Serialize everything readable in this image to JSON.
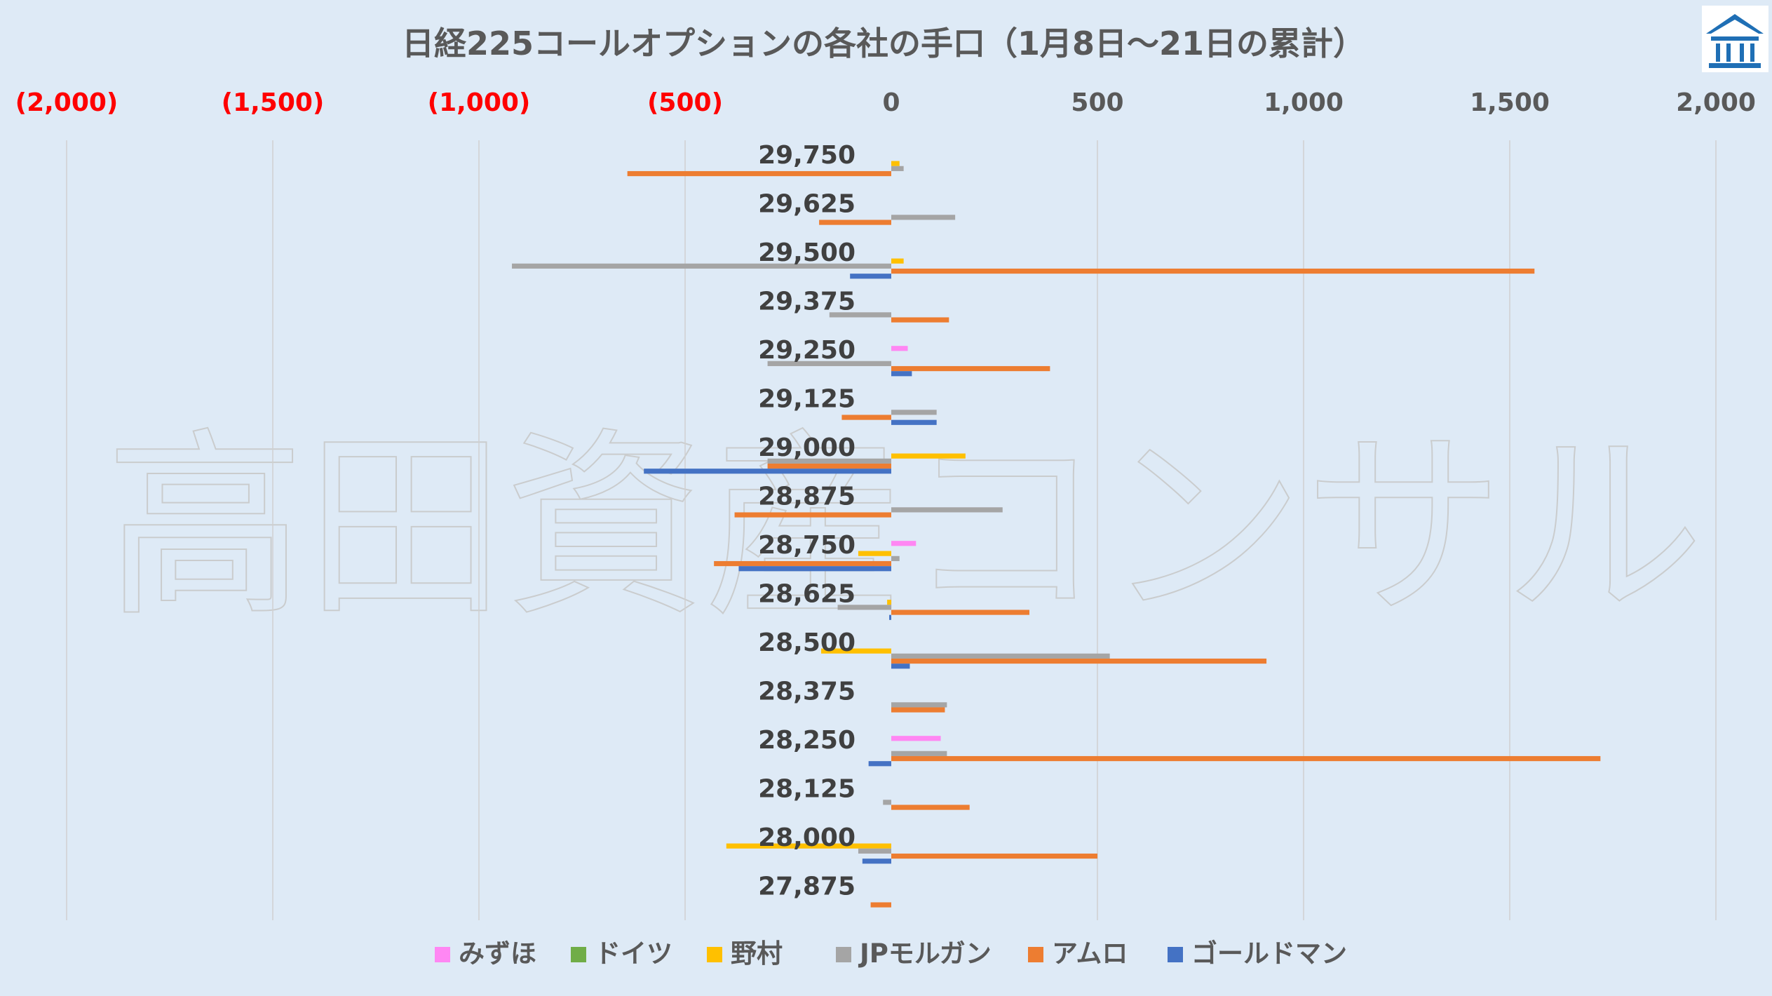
{
  "chart_data": {
    "type": "bar",
    "orientation": "horizontal",
    "title": "日経225コールオプションの各社の手口（1月8日～21日の累計）",
    "watermark": "高田資産コンサル",
    "xlim": [
      -2000,
      2000
    ],
    "x_ticks": [
      -2000,
      -1500,
      -1000,
      -500,
      0,
      500,
      1000,
      1500,
      2000
    ],
    "x_tick_labels": [
      "(2,000)",
      "(1,500)",
      "(1,000)",
      "(500)",
      "0",
      "500",
      "1,000",
      "1,500",
      "2,000"
    ],
    "negative_tick_color": "#ff0000",
    "positive_tick_color": "#595959",
    "grid": true,
    "legend_position": "bottom",
    "categories": [
      "29,750",
      "29,625",
      "29,500",
      "29,375",
      "29,250",
      "29,125",
      "29,000",
      "28,875",
      "28,750",
      "28,625",
      "28,500",
      "28,375",
      "28,250",
      "28,125",
      "28,000",
      "27,875"
    ],
    "series": [
      {
        "name": "みずほ",
        "color": "#ff87f3",
        "values": [
          0,
          0,
          0,
          0,
          40,
          0,
          0,
          0,
          60,
          0,
          0,
          0,
          120,
          0,
          0,
          0
        ]
      },
      {
        "name": "ドイツ",
        "color": "#70ad47",
        "values": [
          0,
          0,
          0,
          0,
          0,
          0,
          0,
          0,
          0,
          0,
          0,
          0,
          0,
          0,
          0,
          0
        ]
      },
      {
        "name": "野村",
        "color": "#ffc000",
        "values": [
          20,
          0,
          30,
          0,
          0,
          0,
          180,
          0,
          -80,
          -10,
          -170,
          0,
          0,
          0,
          -400,
          0
        ]
      },
      {
        "name": "JPモルガン",
        "color": "#a5a5a5",
        "values": [
          30,
          155,
          -920,
          -150,
          -300,
          110,
          -300,
          270,
          20,
          -130,
          530,
          135,
          135,
          -20,
          -80,
          0
        ]
      },
      {
        "name": "アムロ",
        "color": "#ed7d31",
        "values": [
          -640,
          -175,
          1560,
          140,
          385,
          -120,
          -300,
          -380,
          -430,
          335,
          910,
          130,
          1720,
          190,
          500,
          -50
        ]
      },
      {
        "name": "ゴールドマン",
        "color": "#4472c4",
        "values": [
          0,
          0,
          -100,
          0,
          50,
          110,
          -600,
          0,
          -370,
          -5,
          45,
          0,
          -55,
          0,
          -70,
          0
        ]
      }
    ]
  },
  "logo": {
    "name": "building-logo",
    "color": "#1f6fb5"
  }
}
